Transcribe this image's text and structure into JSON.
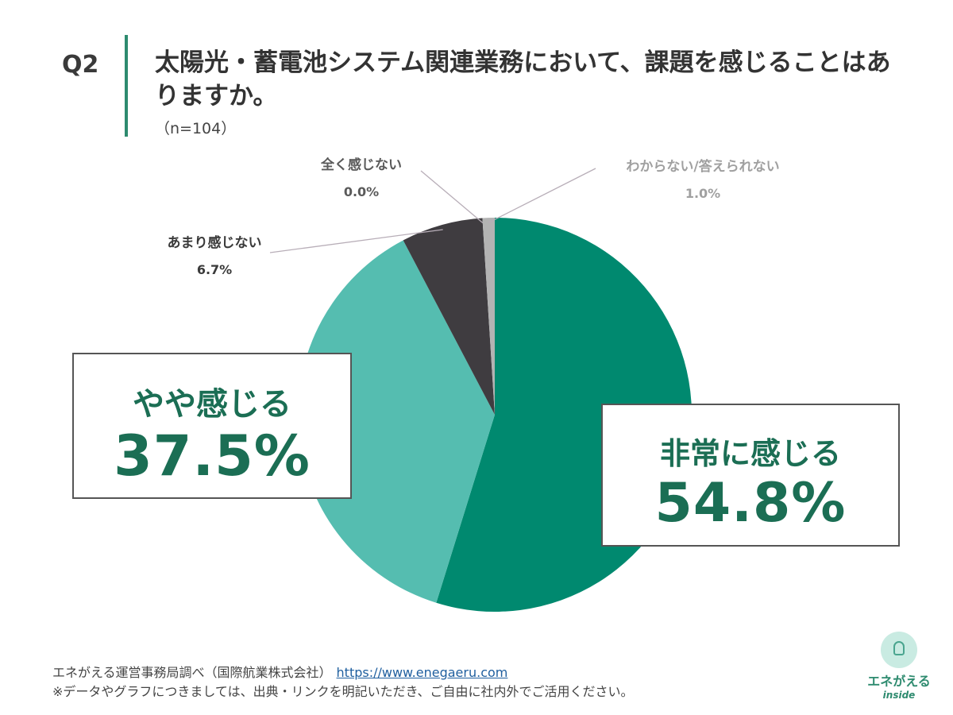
{
  "question": {
    "label": "Q2",
    "title": "太陽光・蓄電池システム関連業務において、課題を感じることはありますか。",
    "n": "（n=104）"
  },
  "chart_data": {
    "type": "pie",
    "title": "太陽光・蓄電池システム関連業務において、課題を感じることはありますか。",
    "categories": [
      "非常に感じる",
      "やや感じる",
      "あまり感じない",
      "全く感じない",
      "わからない/答えられない"
    ],
    "values": [
      54.8,
      37.5,
      6.7,
      0.0,
      1.0
    ],
    "value_labels": [
      "54.8%",
      "37.5%",
      "6.7%",
      "0.0%",
      "1.0%"
    ],
    "colors": [
      "#00896f",
      "#55bdb0",
      "#3f3c40",
      "#9b9b9b",
      "#b3b3b3"
    ],
    "start_angle": "12 o'clock",
    "direction": "clockwise"
  },
  "footer": {
    "source": "エネがえる運営事務局調べ（国際航業株式会社）",
    "url": "https://www.enegaeru.com",
    "note": "※データやグラフにつきましては、出典・リンクを明記いただき、ご自由に社内外でご活用ください。"
  },
  "logo": {
    "name": "エネがえる",
    "sub": "inside"
  }
}
